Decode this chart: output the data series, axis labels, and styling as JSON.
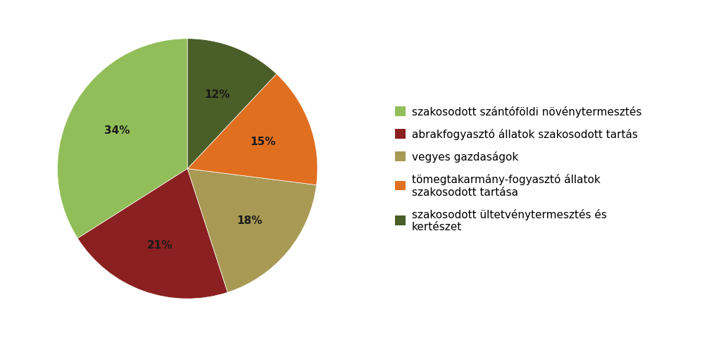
{
  "slices": [
    34,
    21,
    18,
    15,
    12
  ],
  "colors": [
    "#92be5a",
    "#8b2020",
    "#a89a55",
    "#e07020",
    "#4a5e28"
  ],
  "labels": [
    "szakosodott szántóföldi növénytermesztés",
    "abrakfogyasztó állatok szakosodott tartás",
    "vegyes gazdaságok",
    "tömegtakarmány-fogyasztó állatok\nszakosodott tartása",
    "szakosodott ültetvénytermesztés és\nkertészet"
  ],
  "pct_labels": [
    "34%",
    "21%",
    "18%",
    "15%",
    "12%"
  ],
  "background_color": "#ffffff",
  "startangle": 90,
  "legend_fontsize": 11,
  "pct_fontsize": 11,
  "pct_color": "#1a1a1a"
}
